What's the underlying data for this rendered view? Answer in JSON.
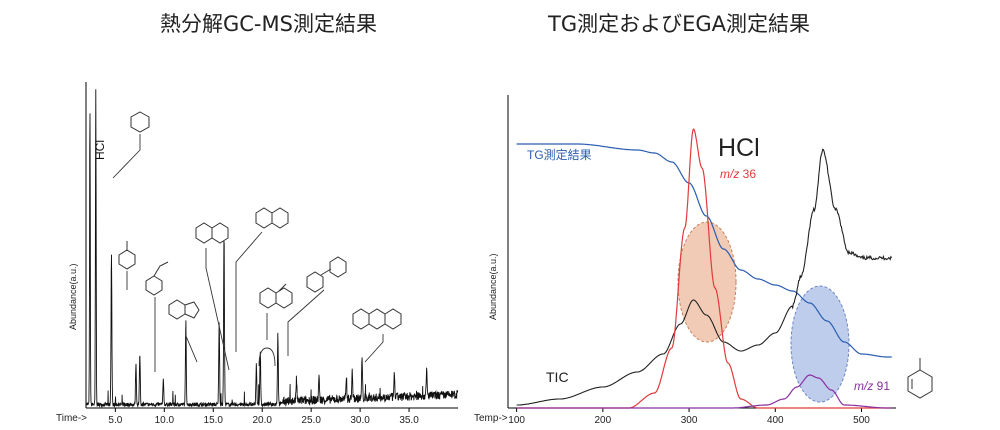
{
  "titles": {
    "left": "熱分解GC-MS測定結果",
    "right": "TG測定およびEGA測定結果"
  },
  "chart_data": [
    {
      "type": "line",
      "title": "熱分解GC-MS測定結果",
      "xlabel": "Time->",
      "ylabel": "Abundance(a.u.)",
      "xticks": [
        "5.0",
        "10.0",
        "15.0",
        "20.0",
        "25.0",
        "30.0",
        "35.0"
      ],
      "xlim": [
        2.0,
        40.0
      ],
      "series": [
        {
          "name": "",
          "peaks": [
            {
              "x": 2.4,
              "y": 0.93
            },
            {
              "x": 3.0,
              "y": 0.99
            },
            {
              "x": 4.6,
              "y": 0.47
            },
            {
              "x": 7.1,
              "y": 0.13
            },
            {
              "x": 7.5,
              "y": 0.16
            },
            {
              "x": 9.9,
              "y": 0.08
            },
            {
              "x": 12.2,
              "y": 0.26
            },
            {
              "x": 15.6,
              "y": 0.26
            },
            {
              "x": 16.1,
              "y": 0.53
            },
            {
              "x": 19.4,
              "y": 0.13
            },
            {
              "x": 19.8,
              "y": 0.17
            },
            {
              "x": 21.6,
              "y": 0.22
            },
            {
              "x": 23.5,
              "y": 0.07
            },
            {
              "x": 25.8,
              "y": 0.08
            },
            {
              "x": 28.6,
              "y": 0.07
            },
            {
              "x": 29.2,
              "y": 0.09
            },
            {
              "x": 30.2,
              "y": 0.13
            },
            {
              "x": 33.5,
              "y": 0.07
            },
            {
              "x": 36.8,
              "y": 0.08
            }
          ]
        }
      ],
      "annotations": [
        "HCl"
      ]
    },
    {
      "type": "line",
      "title": "TG測定およびEGA測定結果",
      "xlabel": "Temp->",
      "ylabel": "Abundance(a.u.)",
      "xticks": [
        "100",
        "200",
        "300",
        "400",
        "500"
      ],
      "xlim": [
        90,
        540
      ],
      "series": [
        {
          "name": "TG測定結果",
          "color": "#2a5db0",
          "x": [
            100,
            170,
            240,
            260,
            280,
            300,
            320,
            340,
            360,
            380,
            400,
            420,
            440,
            460,
            480,
            500,
            530
          ],
          "y": [
            0.88,
            0.88,
            0.86,
            0.85,
            0.82,
            0.75,
            0.64,
            0.53,
            0.46,
            0.43,
            0.41,
            0.39,
            0.35,
            0.29,
            0.22,
            0.18,
            0.17
          ]
        },
        {
          "name": "TIC",
          "color": "#222222",
          "x": [
            100,
            150,
            200,
            240,
            270,
            290,
            305,
            320,
            340,
            360,
            380,
            400,
            420,
            430,
            445,
            455,
            470,
            485,
            500,
            530
          ],
          "y": [
            0.01,
            0.03,
            0.07,
            0.12,
            0.18,
            0.28,
            0.36,
            0.31,
            0.22,
            0.19,
            0.21,
            0.25,
            0.34,
            0.44,
            0.66,
            0.86,
            0.66,
            0.52,
            0.5,
            0.5
          ]
        },
        {
          "name": "m/z 36",
          "color": "#e23a3a",
          "x": [
            100,
            230,
            260,
            280,
            295,
            305,
            315,
            330,
            345,
            360,
            380,
            430,
            530
          ],
          "y": [
            0.0,
            0.0,
            0.05,
            0.2,
            0.6,
            0.93,
            0.8,
            0.4,
            0.15,
            0.03,
            0.0,
            0.0,
            0.0
          ]
        },
        {
          "name": "m/z 91",
          "color": "#8a2fa0",
          "x": [
            100,
            350,
            390,
            410,
            425,
            440,
            450,
            465,
            480,
            530
          ],
          "y": [
            0.0,
            0.0,
            0.01,
            0.03,
            0.07,
            0.11,
            0.1,
            0.06,
            0.01,
            0.0
          ]
        }
      ],
      "annotations": [
        "HCl",
        "m/z 36",
        "m/z 91",
        "TIC",
        "TG測定結果"
      ]
    }
  ],
  "labels": {
    "left_ylabel": "Abundance(a.u.)",
    "left_xlabel": "Time->",
    "right_ylabel": "Abundance(a.u.)",
    "right_xlabel": "Temp->",
    "hcl_left": "HCl",
    "hcl_right": "HCl",
    "mz36": "m/z",
    "mz36_num": " 36",
    "mz91": "m/z",
    "mz91_num": " 91",
    "tic": "TIC",
    "tg": "TG測定結果"
  },
  "colors": {
    "tg": "#2a5db0",
    "tic": "#222222",
    "mz36": "#e23a3a",
    "mz91": "#8a2fa0",
    "ellipse_red": "#e8a07a",
    "ellipse_blue": "#8aa4dc"
  }
}
